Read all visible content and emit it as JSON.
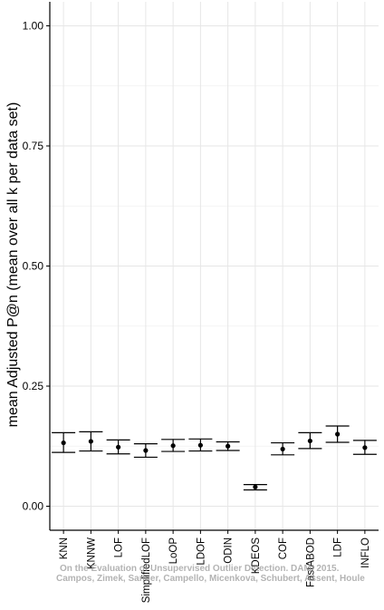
{
  "chart_data": {
    "type": "scatter",
    "title": "",
    "xlabel": "",
    "ylabel": "mean Adjusted P@n (mean over all k per data set)",
    "ylim": [
      -0.05,
      1.05
    ],
    "yticks": [
      "0.00",
      "0.25",
      "0.50",
      "0.75",
      "1.00"
    ],
    "grid": true,
    "legend": "none",
    "categories": [
      "KNN",
      "KNNW",
      "LOF",
      "SimplifiedLOF",
      "LoOP",
      "LDOF",
      "ODIN",
      "KDEOS",
      "COF",
      "FastABOD",
      "LDF",
      "INFLO"
    ],
    "series": [
      {
        "mean": [
          0.132,
          0.135,
          0.123,
          0.116,
          0.126,
          0.127,
          0.125,
          0.04,
          0.119,
          0.136,
          0.15,
          0.122
        ],
        "lower": [
          0.112,
          0.115,
          0.109,
          0.102,
          0.114,
          0.115,
          0.116,
          0.034,
          0.107,
          0.12,
          0.133,
          0.108
        ],
        "upper": [
          0.153,
          0.155,
          0.138,
          0.13,
          0.139,
          0.14,
          0.134,
          0.045,
          0.132,
          0.153,
          0.167,
          0.137
        ]
      }
    ],
    "colors": {
      "point": "#000000",
      "grid": "#e6e6e6",
      "axis": "#000000"
    }
  },
  "watermark": {
    "line1": "On the Evaluation of Unsupervised Outlier Detection. DAMI 2015.",
    "line2": "Campos, Zimek, Sander, Campello, Micenkova, Schubert, Assent, Houle"
  }
}
